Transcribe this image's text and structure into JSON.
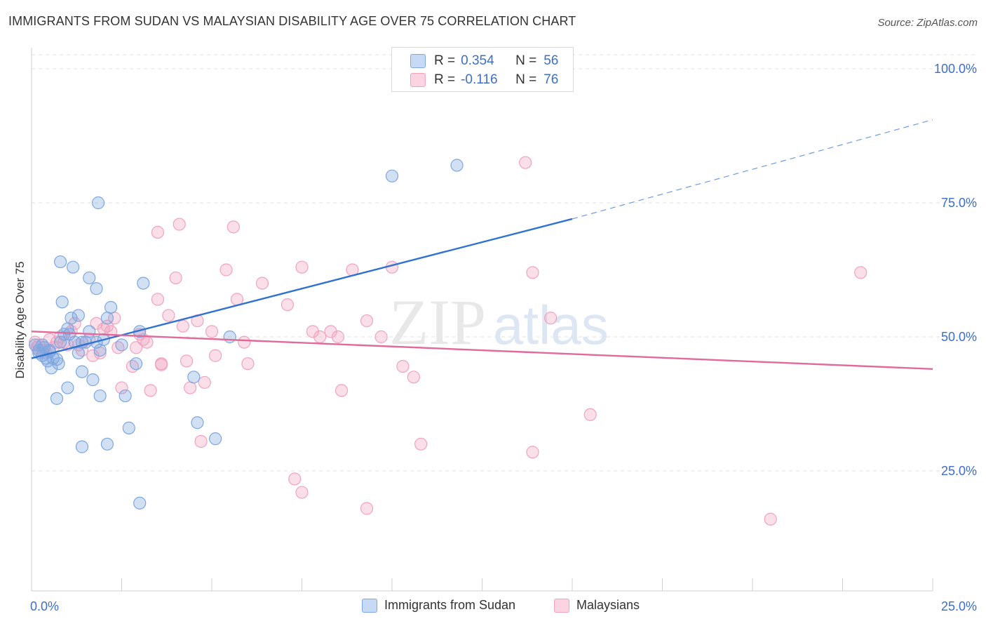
{
  "title": "IMMIGRANTS FROM SUDAN VS MALAYSIAN DISABILITY AGE OVER 75 CORRELATION CHART",
  "source": "Source: ZipAtlas.com",
  "watermark": {
    "zip": "ZIP",
    "atlas": "atlas"
  },
  "legend": {
    "r_label": "R =",
    "n_label": "N =",
    "series": [
      {
        "r": "0.354",
        "n": "56",
        "color": "#7da7e0"
      },
      {
        "r": "-0.116",
        "n": "76",
        "color": "#f0a3bf"
      }
    ]
  },
  "bottom_legend": [
    "Immigrants from Sudan",
    "Malaysians"
  ],
  "colors": {
    "blue_dot": "#7da7e0",
    "blue_line": "#2f72d0",
    "pink_dot": "#f0a3bf",
    "pink_line": "#e06a98",
    "tick_text": "#3d6fc8",
    "grid": "#e2e2e2"
  },
  "chart_data": {
    "type": "scatter",
    "title": "IMMIGRANTS FROM SUDAN VS MALAYSIAN DISABILITY AGE OVER 75 CORRELATION CHART",
    "xlabel": "",
    "ylabel": "Disability Age Over 75",
    "xlim": [
      0,
      25
    ],
    "ylim": [
      0,
      105
    ],
    "x_tick_labels": [
      "0.0%",
      "25.0%"
    ],
    "y_tick_labels": [
      "25.0%",
      "50.0%",
      "75.0%",
      "100.0%"
    ],
    "y_ticks": [
      25,
      50,
      75,
      100
    ],
    "grid": true,
    "legend_placement": "top-center",
    "series": [
      {
        "name": "Immigrants from Sudan",
        "r": 0.354,
        "n": 56,
        "trend": {
          "x": [
            0.0,
            15.0
          ],
          "y": [
            46.0,
            72.0
          ],
          "dashed_to": [
            25.0,
            90.5
          ]
        },
        "points": [
          [
            0.1,
            48.5
          ],
          [
            0.2,
            47.5
          ],
          [
            0.3,
            46.5
          ],
          [
            0.2,
            47.0
          ],
          [
            0.4,
            46.0
          ],
          [
            0.35,
            48.0
          ],
          [
            0.5,
            47.2
          ],
          [
            0.45,
            45.5
          ],
          [
            0.6,
            46.0
          ],
          [
            0.7,
            45.8
          ],
          [
            0.55,
            44.2
          ],
          [
            0.75,
            45.0
          ],
          [
            0.8,
            49.0
          ],
          [
            0.9,
            50.5
          ],
          [
            1.0,
            51.5
          ],
          [
            1.1,
            53.5
          ],
          [
            0.85,
            56.5
          ],
          [
            1.2,
            49.0
          ],
          [
            1.3,
            47.0
          ],
          [
            1.4,
            49.0
          ],
          [
            1.5,
            49.0
          ],
          [
            1.6,
            51.0
          ],
          [
            1.8,
            49.0
          ],
          [
            1.9,
            47.5
          ],
          [
            2.0,
            49.5
          ],
          [
            2.1,
            53.5
          ],
          [
            1.4,
            43.5
          ],
          [
            1.7,
            42.0
          ],
          [
            0.7,
            38.5
          ],
          [
            1.0,
            40.5
          ],
          [
            1.9,
            39.0
          ],
          [
            2.6,
            39.0
          ],
          [
            1.3,
            54.0
          ],
          [
            1.6,
            61.0
          ],
          [
            1.8,
            59.0
          ],
          [
            1.15,
            63.0
          ],
          [
            0.8,
            64.0
          ],
          [
            1.85,
            75.0
          ],
          [
            2.2,
            55.5
          ],
          [
            3.0,
            51.0
          ],
          [
            2.9,
            45.0
          ],
          [
            3.1,
            60.0
          ],
          [
            4.5,
            42.5
          ],
          [
            4.6,
            34.0
          ],
          [
            5.1,
            31.0
          ],
          [
            2.7,
            33.0
          ],
          [
            1.4,
            29.5
          ],
          [
            2.1,
            30.0
          ],
          [
            3.0,
            19.0
          ],
          [
            5.5,
            50.0
          ],
          [
            10.0,
            80.0
          ],
          [
            11.8,
            82.0
          ],
          [
            0.3,
            48.5
          ],
          [
            0.5,
            47.5
          ],
          [
            1.05,
            50.5
          ],
          [
            2.5,
            48.5
          ]
        ]
      },
      {
        "name": "Malaysians",
        "r": -0.116,
        "n": 76,
        "trend": {
          "x": [
            0.0,
            25.0
          ],
          "y": [
            51.0,
            44.0
          ]
        },
        "points": [
          [
            0.1,
            49.0
          ],
          [
            0.2,
            48.5
          ],
          [
            0.3,
            47.5
          ],
          [
            0.4,
            47.0
          ],
          [
            0.5,
            49.5
          ],
          [
            0.6,
            48.0
          ],
          [
            0.8,
            50.0
          ],
          [
            0.9,
            49.0
          ],
          [
            1.1,
            51.0
          ],
          [
            1.2,
            52.5
          ],
          [
            1.4,
            47.5
          ],
          [
            1.6,
            49.5
          ],
          [
            1.7,
            46.5
          ],
          [
            1.9,
            47.0
          ],
          [
            2.0,
            51.5
          ],
          [
            2.1,
            52.0
          ],
          [
            2.3,
            53.5
          ],
          [
            2.4,
            48.0
          ],
          [
            2.5,
            40.5
          ],
          [
            2.8,
            44.5
          ],
          [
            3.0,
            50.5
          ],
          [
            3.1,
            49.5
          ],
          [
            3.2,
            49.0
          ],
          [
            3.3,
            40.0
          ],
          [
            3.5,
            57.0
          ],
          [
            3.6,
            45.0
          ],
          [
            3.8,
            54.0
          ],
          [
            4.0,
            61.0
          ],
          [
            4.2,
            52.0
          ],
          [
            4.3,
            45.5
          ],
          [
            4.4,
            40.5
          ],
          [
            4.6,
            53.0
          ],
          [
            4.8,
            41.5
          ],
          [
            5.0,
            51.0
          ],
          [
            5.1,
            46.5
          ],
          [
            5.4,
            62.5
          ],
          [
            5.7,
            57.0
          ],
          [
            5.9,
            49.0
          ],
          [
            6.0,
            45.0
          ],
          [
            6.4,
            60.0
          ],
          [
            7.1,
            56.0
          ],
          [
            7.5,
            63.0
          ],
          [
            7.8,
            51.0
          ],
          [
            8.0,
            50.0
          ],
          [
            8.3,
            51.0
          ],
          [
            8.5,
            50.0
          ],
          [
            8.6,
            40.0
          ],
          [
            8.9,
            62.5
          ],
          [
            9.3,
            53.0
          ],
          [
            9.7,
            50.0
          ],
          [
            10.0,
            63.0
          ],
          [
            10.3,
            44.5
          ],
          [
            10.6,
            42.5
          ],
          [
            3.5,
            69.5
          ],
          [
            4.1,
            71.0
          ],
          [
            5.6,
            70.5
          ],
          [
            4.7,
            30.5
          ],
          [
            7.3,
            23.5
          ],
          [
            7.5,
            21.0
          ],
          [
            9.3,
            18.0
          ],
          [
            10.8,
            30.0
          ],
          [
            13.7,
            82.5
          ],
          [
            13.9,
            28.5
          ],
          [
            13.9,
            62.0
          ],
          [
            14.4,
            53.5
          ],
          [
            15.5,
            35.5
          ],
          [
            23.0,
            62.0
          ],
          [
            20.5,
            16.0
          ],
          [
            2.9,
            48.0
          ],
          [
            1.3,
            48.5
          ],
          [
            0.15,
            48.0
          ],
          [
            0.7,
            49.0
          ],
          [
            1.0,
            48.5
          ],
          [
            1.8,
            52.5
          ],
          [
            2.2,
            51.0
          ],
          [
            3.6,
            44.8
          ]
        ]
      }
    ]
  }
}
